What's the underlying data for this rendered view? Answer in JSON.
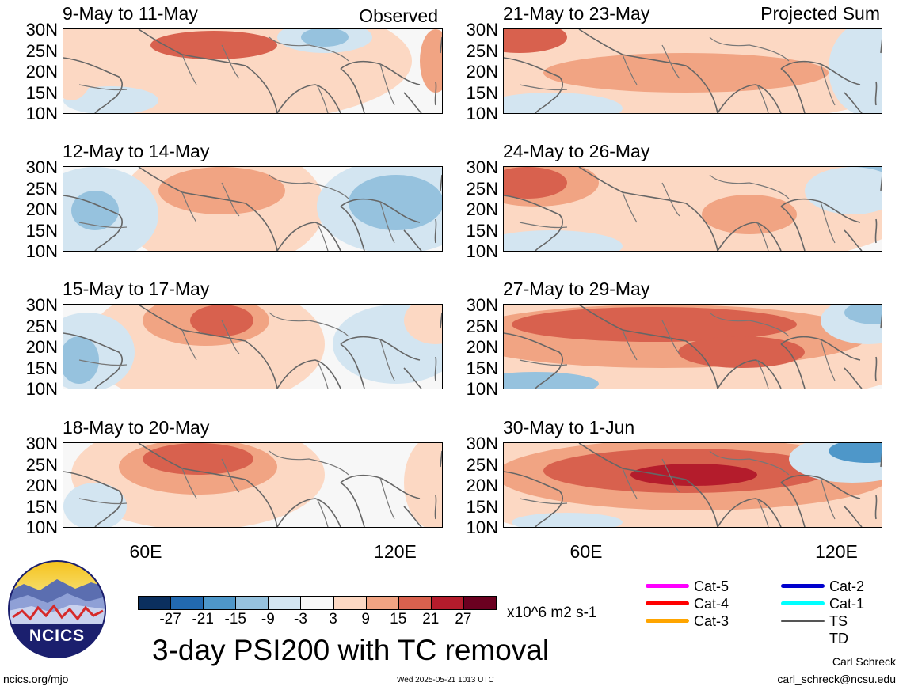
{
  "title": "3-day PSI200 with TC removal",
  "headers": {
    "observed": "Observed",
    "projected": "Projected Sum"
  },
  "panels": [
    {
      "label": "9-May to 11-May"
    },
    {
      "label": "12-May to 14-May"
    },
    {
      "label": "15-May to 17-May"
    },
    {
      "label": "18-May to 20-May"
    },
    {
      "label": "21-May to 23-May"
    },
    {
      "label": "24-May to 26-May"
    },
    {
      "label": "27-May to 29-May"
    },
    {
      "label": "30-May to 1-Jun"
    }
  ],
  "lat_labels": [
    "30N",
    "25N",
    "20N",
    "15N",
    "10N"
  ],
  "lon_labels": [
    "60E",
    "120E"
  ],
  "colorbar": {
    "colors": [
      "#0b2f5e",
      "#2269af",
      "#4e97c9",
      "#96c2de",
      "#d3e5f1",
      "#f7f7f7",
      "#fcd8c3",
      "#f1a483",
      "#d8614e",
      "#b41c2c",
      "#6b0020"
    ],
    "ticks": [
      "-27",
      "-21",
      "-15",
      "-9",
      "-3",
      "3",
      "9",
      "15",
      "21",
      "27"
    ],
    "units": "x10^6 m2 s-1"
  },
  "tc_legend": [
    {
      "label": "Cat-5",
      "color": "#ff00ff"
    },
    {
      "label": "Cat-4",
      "color": "#ff0000"
    },
    {
      "label": "Cat-3",
      "color": "#ffa500"
    },
    {
      "label": "Cat-2",
      "color": "#0000cd"
    },
    {
      "label": "Cat-1",
      "color": "#00ffff"
    },
    {
      "label": "TS",
      "color": "#555555"
    },
    {
      "label": "TD",
      "color": "#aaaaaa"
    }
  ],
  "logo": {
    "text": "NCICS"
  },
  "footer": {
    "left": "ncics.org/mjo",
    "timestamp": "Wed 2025-05-21 1013 UTC",
    "author": "Carl Schreck",
    "email": "carl_schreck@ncsu.edu"
  }
}
